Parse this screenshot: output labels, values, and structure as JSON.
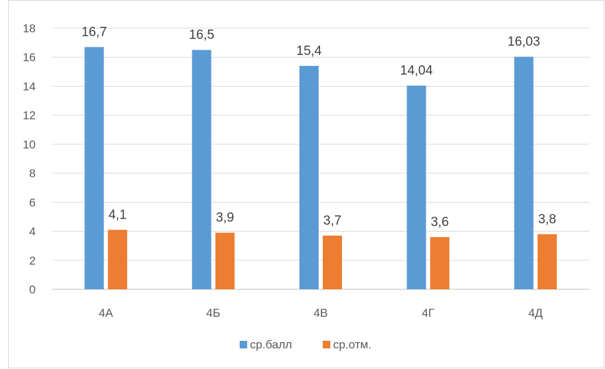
{
  "chart_data": {
    "type": "bar",
    "title": "",
    "xlabel": "",
    "ylabel": "",
    "categories": [
      "4А",
      "4Б",
      "4В",
      "4Г",
      "4Д"
    ],
    "series": [
      {
        "name": "ср.балл",
        "color": "#5b9bd5",
        "values": [
          16.7,
          16.5,
          15.4,
          14.04,
          16.03
        ],
        "labels": [
          "16,7",
          "16,5",
          "15,4",
          "14,04",
          "16,03"
        ]
      },
      {
        "name": "ср.отм.",
        "color": "#ed7d31",
        "values": [
          4.1,
          3.9,
          3.7,
          3.6,
          3.8
        ],
        "labels": [
          "4,1",
          "3,9",
          "3,7",
          "3,6",
          "3,8"
        ]
      }
    ],
    "ylim": [
      0,
      18
    ],
    "yticks": [
      0,
      2,
      4,
      6,
      8,
      10,
      12,
      14,
      16,
      18
    ],
    "grid": true,
    "legend": "bottom"
  }
}
